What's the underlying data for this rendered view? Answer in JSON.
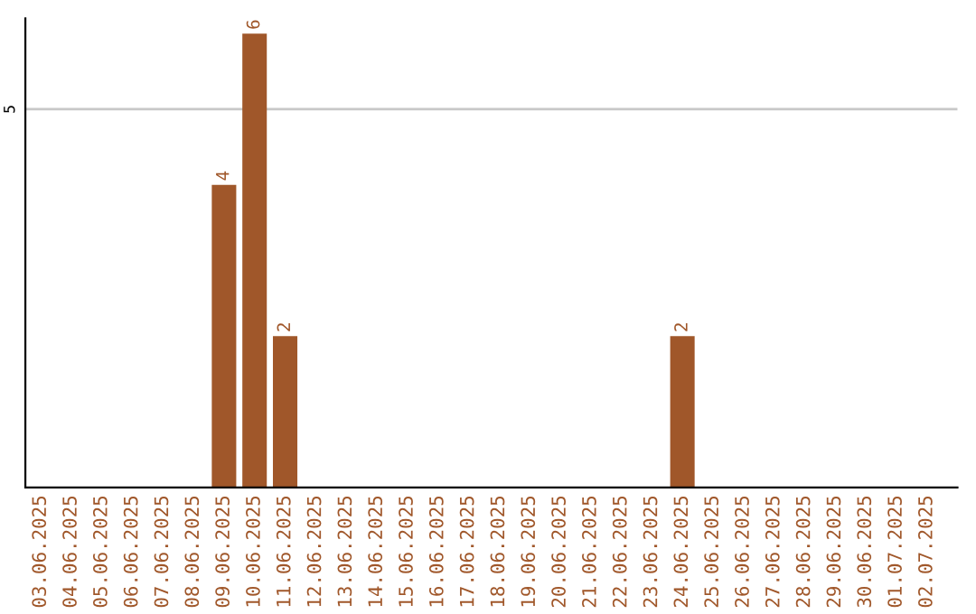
{
  "chart_data": {
    "type": "bar",
    "categories": [
      "03.06.2025",
      "04.06.2025",
      "05.06.2025",
      "06.06.2025",
      "07.06.2025",
      "08.06.2025",
      "09.06.2025",
      "10.06.2025",
      "11.06.2025",
      "12.06.2025",
      "13.06.2025",
      "14.06.2025",
      "15.06.2025",
      "16.06.2025",
      "17.06.2025",
      "18.06.2025",
      "19.06.2025",
      "20.06.2025",
      "21.06.2025",
      "22.06.2025",
      "23.06.2025",
      "24.06.2025",
      "25.06.2025",
      "26.06.2025",
      "27.06.2025",
      "28.06.2025",
      "29.06.2025",
      "30.06.2025",
      "01.07.2025",
      "02.07.2025"
    ],
    "values": [
      0,
      0,
      0,
      0,
      0,
      0,
      4,
      6,
      2,
      0,
      0,
      0,
      0,
      0,
      0,
      0,
      0,
      0,
      0,
      0,
      0,
      2,
      0,
      0,
      0,
      0,
      0,
      0,
      0,
      0
    ],
    "color": "#a0572a",
    "ylim": [
      0,
      6.2
    ],
    "yticks": [
      5
    ],
    "value_labels": [
      null,
      null,
      null,
      null,
      null,
      null,
      "4",
      "6",
      "2",
      null,
      null,
      null,
      null,
      null,
      null,
      null,
      null,
      null,
      null,
      null,
      null,
      "2",
      null,
      null,
      null,
      null,
      null,
      null,
      null,
      null
    ],
    "grid": "y",
    "legend": false
  }
}
